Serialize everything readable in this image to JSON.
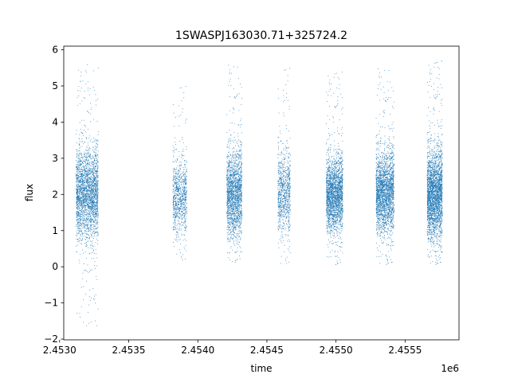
{
  "chart_data": {
    "type": "scatter",
    "title": "1SWASPJ163030.71+325724.2",
    "xlabel": "time",
    "ylabel": "flux",
    "x_offset_label": "1e6",
    "xlim": [
      2.45303,
      2.45589
    ],
    "ylim": [
      -2.02,
      6.1
    ],
    "x_ticks": [
      2.453,
      2.4535,
      2.454,
      2.4545,
      2.455,
      2.4555
    ],
    "x_tick_labels": [
      "2.4530",
      "2.4535",
      "2.4540",
      "2.4545",
      "2.4550",
      "2.4555"
    ],
    "y_ticks": [
      -2,
      -1,
      0,
      1,
      2,
      3,
      4,
      5,
      6
    ],
    "y_tick_labels": [
      "−2",
      "−1",
      "0",
      "1",
      "2",
      "3",
      "4",
      "5",
      "6"
    ],
    "grid": false,
    "legend": "none",
    "marker_color": "#1f77b4",
    "series": [
      {
        "clusters": [
          {
            "x_start": 2.45312,
            "x_end": 2.45328,
            "center": 2.0,
            "spread": 0.62,
            "n": 2600,
            "min": -1.65,
            "max": 5.6
          },
          {
            "x_start": 2.45382,
            "x_end": 2.45392,
            "center": 1.95,
            "spread": 0.5,
            "n": 900,
            "min": 0.1,
            "max": 5.0
          },
          {
            "x_start": 2.45421,
            "x_end": 2.45432,
            "center": 2.0,
            "spread": 0.6,
            "n": 1900,
            "min": 0.1,
            "max": 5.7
          },
          {
            "x_start": 2.45458,
            "x_end": 2.45467,
            "center": 2.05,
            "spread": 0.55,
            "n": 900,
            "min": 0.0,
            "max": 5.5
          },
          {
            "x_start": 2.45493,
            "x_end": 2.45505,
            "center": 2.0,
            "spread": 0.5,
            "n": 2300,
            "min": 0.0,
            "max": 5.4
          },
          {
            "x_start": 2.45529,
            "x_end": 2.45542,
            "center": 2.05,
            "spread": 0.55,
            "n": 2400,
            "min": 0.0,
            "max": 5.6
          },
          {
            "x_start": 2.45566,
            "x_end": 2.45577,
            "center": 2.0,
            "spread": 0.6,
            "n": 2800,
            "min": 0.0,
            "max": 5.7
          }
        ]
      }
    ]
  }
}
